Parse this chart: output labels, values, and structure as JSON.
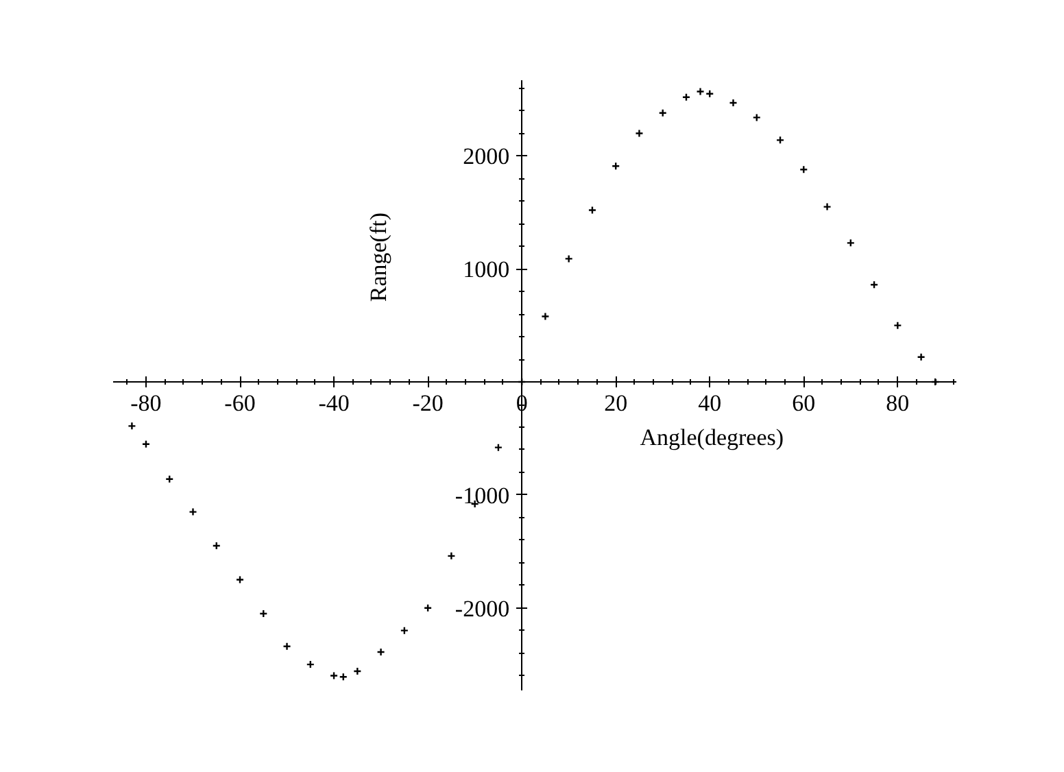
{
  "chart_data": {
    "type": "scatter",
    "xlabel": "Angle(degrees)",
    "ylabel": "Range(ft)",
    "marker": "cross",
    "grid": false,
    "x": [
      -83,
      -80,
      -75,
      -70,
      -65,
      -60,
      -55,
      -50,
      -45,
      -40,
      -38,
      -35,
      -30,
      -25,
      -20,
      -15,
      -10,
      -5,
      0,
      5,
      10,
      15,
      20,
      25,
      30,
      35,
      38,
      40,
      45,
      50,
      55,
      60,
      65,
      70,
      75,
      80,
      85,
      88
    ],
    "series": [
      {
        "color": "#000000",
        "values": [
          -390,
          -550,
          -860,
          -1150,
          -1450,
          -1750,
          -2050,
          -2340,
          -2500,
          -2600,
          -2610,
          -2560,
          -2390,
          -2200,
          -2000,
          -1540,
          -1080,
          -580,
          0,
          580,
          1090,
          1520,
          1910,
          2200,
          2380,
          2520,
          2570,
          2550,
          2470,
          2340,
          2140,
          1880,
          1550,
          1230,
          860,
          500,
          220,
          0
        ]
      }
    ],
    "xlim": [
      -87,
      92.5
    ],
    "ylim": [
      -2730,
      2670
    ],
    "xticks": [
      -80,
      -60,
      -40,
      -20,
      {
        "value": 0,
        "label": "0"
      },
      20,
      40,
      60,
      80
    ],
    "yticks": [
      -2000,
      -1000,
      1000,
      2000
    ]
  }
}
